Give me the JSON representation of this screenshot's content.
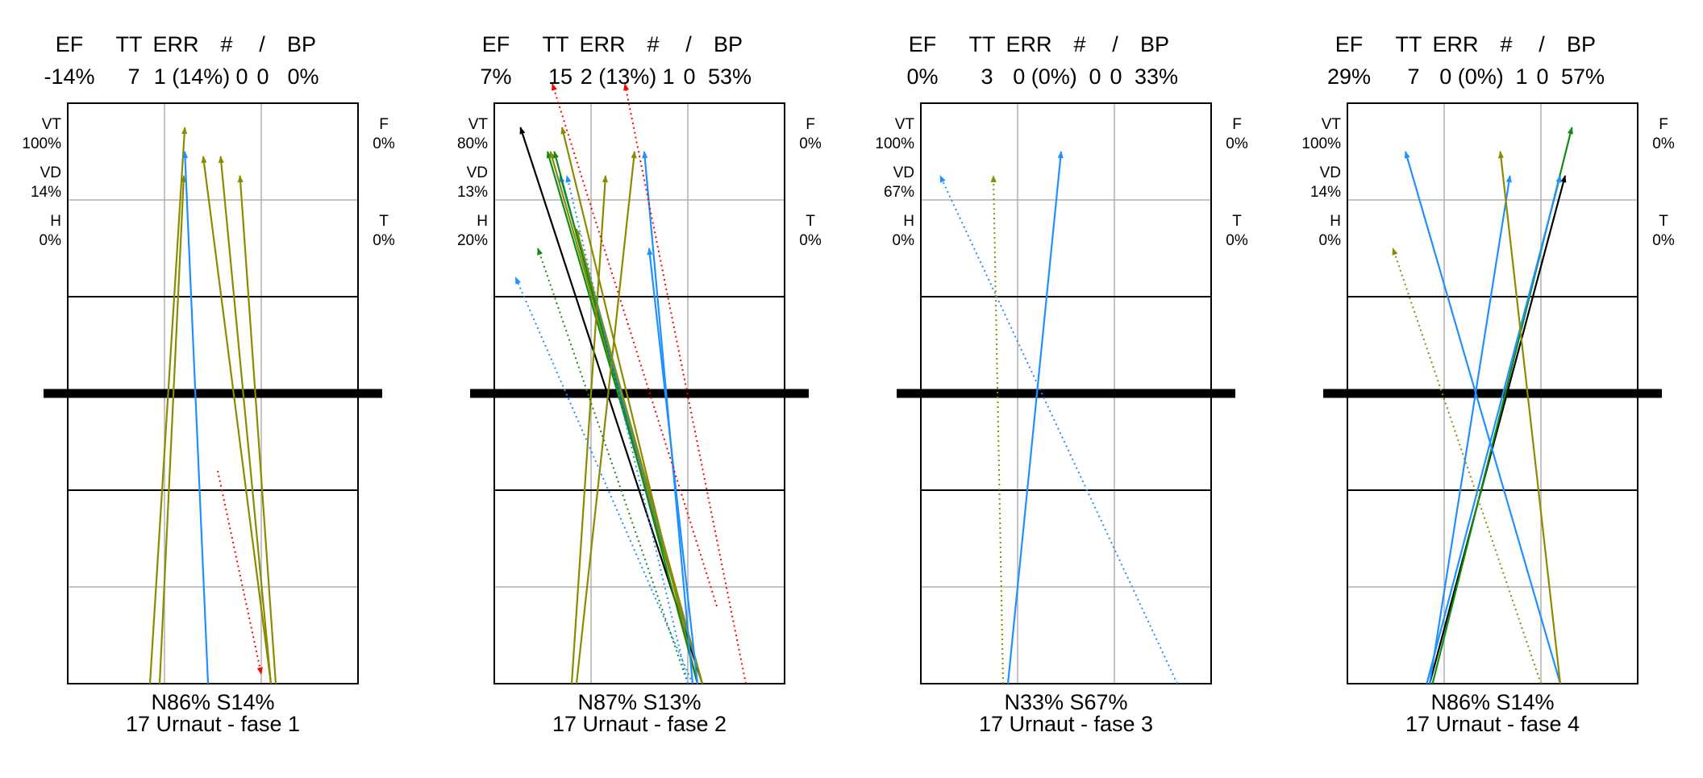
{
  "colors": {
    "olive": "#8b8b00",
    "blue": "#1e90ff",
    "green": "#138a13",
    "black": "#000000",
    "red": "#ff0000"
  },
  "chart_data": [
    {
      "type": "line",
      "title": "17 Urnaut  - fase 1",
      "footer": "N86%   S14%",
      "stats_headers": [
        "EF",
        "TT",
        "ERR",
        "#",
        "/",
        "BP"
      ],
      "stats_values": [
        "-14%",
        "7",
        "1 (14%)",
        "0",
        "0",
        "0%"
      ],
      "left_labels": [
        "VT",
        "100%",
        "VD",
        "14%",
        "H",
        "0%"
      ],
      "right_labels": [
        "F",
        "0%",
        "T",
        "0%"
      ],
      "xlim": [
        0,
        3
      ],
      "ylim": [
        0,
        6
      ],
      "lines": [
        {
          "from": [
            0.85,
            0.0
          ],
          "to": [
            1.21,
            5.75
          ],
          "color": "olive",
          "style": "solid"
        },
        {
          "from": [
            0.95,
            0.0
          ],
          "to": [
            1.2,
            5.25
          ],
          "color": "olive",
          "style": "solid"
        },
        {
          "from": [
            1.45,
            0.0
          ],
          "to": [
            1.21,
            5.5
          ],
          "color": "blue",
          "style": "solid"
        },
        {
          "from": [
            2.1,
            0.0
          ],
          "to": [
            1.4,
            5.45
          ],
          "color": "olive",
          "style": "solid"
        },
        {
          "from": [
            2.1,
            0.0
          ],
          "to": [
            1.58,
            5.45
          ],
          "color": "olive",
          "style": "solid"
        },
        {
          "from": [
            2.15,
            0.0
          ],
          "to": [
            1.78,
            5.25
          ],
          "color": "olive",
          "style": "solid"
        },
        {
          "from": [
            1.55,
            2.2
          ],
          "to": [
            2.0,
            0.1
          ],
          "color": "red",
          "style": "dotted"
        }
      ]
    },
    {
      "type": "line",
      "title": "17 Urnaut  - fase 2",
      "footer": "N87%   S13%",
      "stats_headers": [
        "EF",
        "TT",
        "ERR",
        "#",
        "/",
        "BP"
      ],
      "stats_values": [
        "7%",
        "15",
        "2 (13%)",
        "1",
        "0",
        "53%"
      ],
      "left_labels": [
        "VT",
        "80%",
        "VD",
        "13%",
        "H",
        "20%"
      ],
      "right_labels": [
        "F",
        "0%",
        "T",
        "0%"
      ],
      "xlim": [
        0,
        3
      ],
      "ylim": [
        0,
        6
      ],
      "lines": [
        {
          "from": [
            2.15,
            0.0
          ],
          "to": [
            0.27,
            5.75
          ],
          "color": "black",
          "style": "solid"
        },
        {
          "from": [
            2.15,
            0.0
          ],
          "to": [
            0.55,
            5.5
          ],
          "color": "green",
          "style": "solid"
        },
        {
          "from": [
            2.15,
            0.0
          ],
          "to": [
            0.58,
            5.5
          ],
          "color": "olive",
          "style": "solid"
        },
        {
          "from": [
            2.15,
            0.0
          ],
          "to": [
            0.68,
            5.25
          ],
          "color": "blue",
          "style": "solid"
        },
        {
          "from": [
            2.15,
            0.0
          ],
          "to": [
            0.85,
            4.7
          ],
          "color": "olive",
          "style": "solid"
        },
        {
          "from": [
            2.1,
            0.0
          ],
          "to": [
            0.7,
            5.75
          ],
          "color": "olive",
          "style": "solid"
        },
        {
          "from": [
            2.1,
            0.0
          ],
          "to": [
            0.62,
            5.5
          ],
          "color": "green",
          "style": "solid"
        },
        {
          "from": [
            2.05,
            0.0
          ],
          "to": [
            1.55,
            5.5
          ],
          "color": "blue",
          "style": "solid"
        },
        {
          "from": [
            2.1,
            0.0
          ],
          "to": [
            1.6,
            4.5
          ],
          "color": "blue",
          "style": "solid"
        },
        {
          "from": [
            0.8,
            0.0
          ],
          "to": [
            1.15,
            5.25
          ],
          "color": "olive",
          "style": "solid"
        },
        {
          "from": [
            0.85,
            0.0
          ],
          "to": [
            1.45,
            5.5
          ],
          "color": "olive",
          "style": "solid"
        },
        {
          "from": [
            2.05,
            0.0
          ],
          "to": [
            0.22,
            4.2
          ],
          "color": "blue",
          "style": "dotted"
        },
        {
          "from": [
            2.0,
            0.0
          ],
          "to": [
            0.45,
            4.5
          ],
          "color": "green",
          "style": "dotted"
        },
        {
          "from": [
            2.0,
            0.0
          ],
          "to": [
            0.75,
            5.25
          ],
          "color": "blue",
          "style": "dotted"
        },
        {
          "from": [
            2.6,
            0.0
          ],
          "to": [
            1.35,
            6.2
          ],
          "color": "red",
          "style": "dotted"
        },
        {
          "from": [
            2.3,
            0.8
          ],
          "to": [
            0.6,
            6.2
          ],
          "color": "red",
          "style": "dotted"
        }
      ]
    },
    {
      "type": "line",
      "title": "17 Urnaut  - fase 3",
      "footer": "N33%   S67%",
      "stats_headers": [
        "EF",
        "TT",
        "ERR",
        "#",
        "/",
        "BP"
      ],
      "stats_values": [
        "0%",
        "3",
        "0 (0%)",
        "0",
        "0",
        "33%"
      ],
      "left_labels": [
        "VT",
        "100%",
        "VD",
        "67%",
        "H",
        "0%"
      ],
      "right_labels": [
        "F",
        "0%",
        "T",
        "0%"
      ],
      "xlim": [
        0,
        3
      ],
      "ylim": [
        0,
        6
      ],
      "lines": [
        {
          "from": [
            0.9,
            0.0
          ],
          "to": [
            1.45,
            5.5
          ],
          "color": "blue",
          "style": "solid"
        },
        {
          "from": [
            0.85,
            0.0
          ],
          "to": [
            0.75,
            5.25
          ],
          "color": "olive",
          "style": "dotted"
        },
        {
          "from": [
            2.65,
            0.0
          ],
          "to": [
            0.2,
            5.25
          ],
          "color": "blue",
          "style": "dotted"
        }
      ]
    },
    {
      "type": "line",
      "title": "17 Urnaut  - fase 4",
      "footer": "N86%   S14%",
      "stats_headers": [
        "EF",
        "TT",
        "ERR",
        "#",
        "/",
        "BP"
      ],
      "stats_values": [
        "29%",
        "7",
        "0 (0%)",
        "1",
        "0",
        "57%"
      ],
      "left_labels": [
        "VT",
        "100%",
        "VD",
        "14%",
        "H",
        "0%"
      ],
      "right_labels": [
        "F",
        "0%",
        "T",
        "0%"
      ],
      "xlim": [
        0,
        3
      ],
      "ylim": [
        0,
        6
      ],
      "lines": [
        {
          "from": [
            0.85,
            0.0
          ],
          "to": [
            2.25,
            5.25
          ],
          "color": "black",
          "style": "solid"
        },
        {
          "from": [
            0.88,
            0.0
          ],
          "to": [
            2.32,
            5.75
          ],
          "color": "green",
          "style": "solid"
        },
        {
          "from": [
            0.82,
            0.0
          ],
          "to": [
            2.2,
            5.25
          ],
          "color": "blue",
          "style": "solid"
        },
        {
          "from": [
            0.85,
            0.0
          ],
          "to": [
            1.68,
            5.25
          ],
          "color": "blue",
          "style": "solid"
        },
        {
          "from": [
            2.2,
            0.0
          ],
          "to": [
            0.6,
            5.5
          ],
          "color": "blue",
          "style": "solid"
        },
        {
          "from": [
            2.2,
            0.0
          ],
          "to": [
            1.58,
            5.5
          ],
          "color": "olive",
          "style": "solid"
        },
        {
          "from": [
            2.0,
            0.0
          ],
          "to": [
            0.47,
            4.5
          ],
          "color": "olive",
          "style": "dotted"
        }
      ]
    }
  ]
}
